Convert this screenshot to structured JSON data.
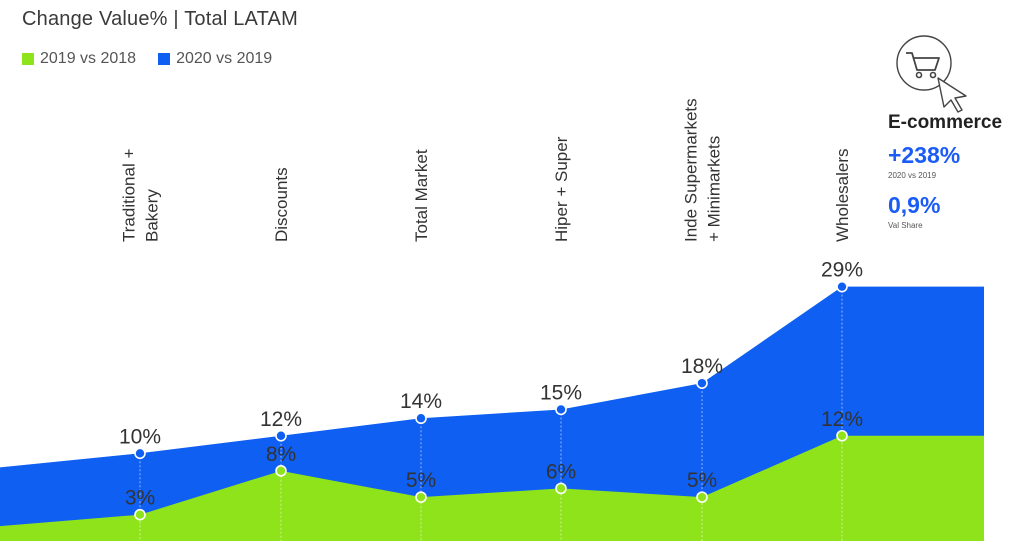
{
  "header": {
    "title": "Change Value% | Total LATAM"
  },
  "colors": {
    "series_2019": "#8fe31a",
    "series_2020": "#0e5ff2",
    "text": "#333333"
  },
  "legend": [
    {
      "label": "2019 vs 2018",
      "color": "#8fe31a"
    },
    {
      "label": "2020 vs 2019",
      "color": "#0e5ff2"
    }
  ],
  "chart_data": {
    "type": "area",
    "categories": [
      [
        "Traditional +",
        "Bakery"
      ],
      [
        "Discounts"
      ],
      [
        "Total Market"
      ],
      [
        "Hiper + Super"
      ],
      [
        "Inde Supermarkets",
        "+ Minimarkets"
      ],
      [
        "Wholesalers"
      ]
    ],
    "series": [
      {
        "name": "2019 vs 2018",
        "values": [
          3,
          8,
          5,
          6,
          5,
          12
        ],
        "labels": [
          "3%",
          "8%",
          "5%",
          "6%",
          "5%",
          "12%"
        ]
      },
      {
        "name": "2020 vs 2019",
        "values": [
          10,
          12,
          14,
          15,
          18,
          29
        ],
        "labels": [
          "10%",
          "12%",
          "14%",
          "15%",
          "18%",
          "29%"
        ]
      }
    ],
    "stacking": "overlapping",
    "grid": false
  },
  "ecommerce": {
    "icon": "shopping-cart-icon",
    "title": "E-commerce",
    "growth": "+238%",
    "growth_label": "2020 vs 2019",
    "share": "0,9%",
    "share_label": "Val Share"
  }
}
